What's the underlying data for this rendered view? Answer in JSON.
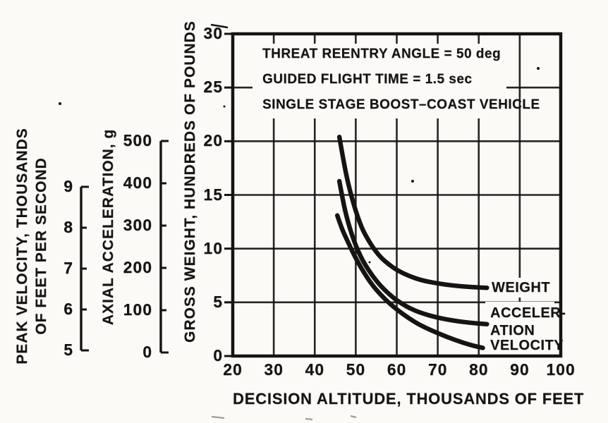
{
  "figure": {
    "kind": "scanned report figure",
    "paper_color": "#fbfaf6",
    "ink_color": "#151313"
  },
  "chart_data": {
    "type": "line",
    "grid": "on",
    "xlabel": "DECISION ALTITUDE, THOUSANDS OF FEET",
    "xlim": [
      20,
      100
    ],
    "x_ticks": [
      20,
      30,
      40,
      50,
      60,
      70,
      80,
      90,
      100
    ],
    "annotations": [
      "THREAT REENTRY ANGLE = 50 deg",
      "GUIDED FLIGHT TIME = 1.5 sec",
      "SINGLE STAGE BOOST–COAST VEHICLE"
    ],
    "axes": [
      {
        "id": "gross_weight",
        "label": "GROSS WEIGHT, HUNDREDS OF POUNDS",
        "min": 0,
        "max": 30,
        "ticks": [
          0,
          5,
          10,
          15,
          20,
          25,
          30
        ]
      },
      {
        "id": "axial_acceleration",
        "label": "AXIAL ACCELERATION, g",
        "min": 0,
        "max": 500,
        "ticks": [
          0,
          100,
          200,
          300,
          400,
          500
        ]
      },
      {
        "id": "peak_velocity",
        "label_lines": [
          "PEAK VELOCITY, THOUSANDS",
          "OF FEET PER SECOND"
        ],
        "min": 5,
        "max": 9,
        "ticks": [
          5,
          6,
          7,
          8,
          9
        ]
      }
    ],
    "series": [
      {
        "name": "WEIGHT",
        "axis": "gross_weight",
        "units": "hundreds of pounds",
        "label_lines": [
          "WEIGHT"
        ],
        "points": [
          [
            46,
            20.4
          ],
          [
            47,
            18.2
          ],
          [
            48,
            16.3
          ],
          [
            49,
            14.8
          ],
          [
            50,
            13.5
          ],
          [
            51,
            12.4
          ],
          [
            52,
            11.5
          ],
          [
            54,
            10.2
          ],
          [
            56,
            9.2
          ],
          [
            58,
            8.55
          ],
          [
            60,
            8.0
          ],
          [
            63,
            7.45
          ],
          [
            66,
            7.05
          ],
          [
            70,
            6.75
          ],
          [
            74,
            6.55
          ],
          [
            78,
            6.42
          ],
          [
            82,
            6.35
          ]
        ]
      },
      {
        "name": "ACCELERATION",
        "axis": "axial_acceleration",
        "units": "g",
        "label_lines": [
          "ACCELER-",
          "ATION"
        ],
        "points": [
          [
            46,
            405
          ],
          [
            47,
            352
          ],
          [
            48,
            312
          ],
          [
            49,
            280
          ],
          [
            50,
            253
          ],
          [
            51,
            231
          ],
          [
            52,
            212
          ],
          [
            54,
            182
          ],
          [
            56,
            158
          ],
          [
            58,
            139
          ],
          [
            60,
            123
          ],
          [
            63,
            105
          ],
          [
            66,
            93
          ],
          [
            70,
            82
          ],
          [
            74,
            75
          ],
          [
            78,
            70
          ],
          [
            82,
            67
          ]
        ]
      },
      {
        "name": "VELOCITY",
        "axis": "peak_velocity",
        "units": "thousands of feet per second",
        "label_lines": [
          "VELOCITY"
        ],
        "points": [
          [
            45.5,
            8.3
          ],
          [
            46.5,
            8.0
          ],
          [
            48,
            7.67
          ],
          [
            50,
            7.25
          ],
          [
            52,
            6.9
          ],
          [
            54,
            6.6
          ],
          [
            56,
            6.37
          ],
          [
            58,
            6.17
          ],
          [
            60,
            6.0
          ],
          [
            63,
            5.78
          ],
          [
            66,
            5.6
          ],
          [
            70,
            5.42
          ],
          [
            74,
            5.26
          ],
          [
            78,
            5.13
          ],
          [
            81,
            5.06
          ]
        ]
      }
    ]
  }
}
